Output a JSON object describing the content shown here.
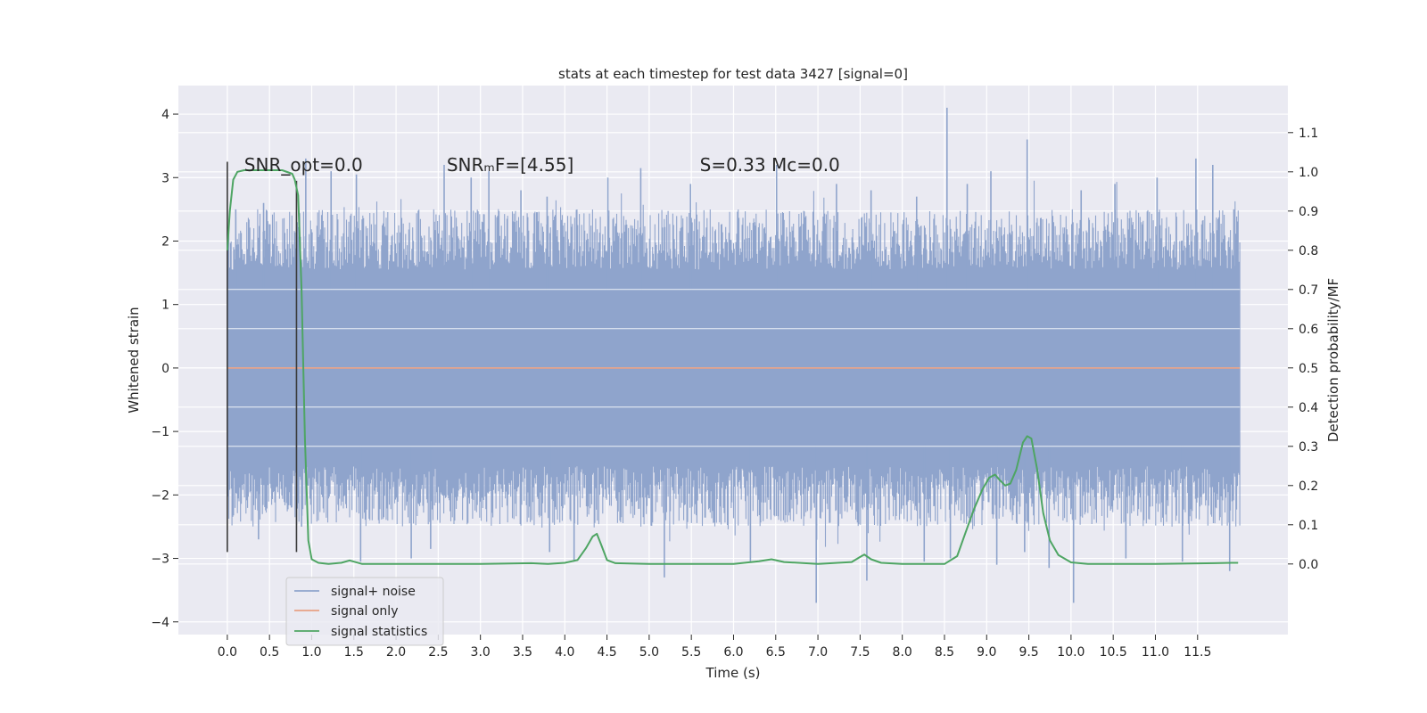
{
  "chart_data": {
    "type": "line",
    "title": "stats at each timestep for test data 3427 [signal=0]",
    "xlabel": "Time (s)",
    "ylabel": "Whitened strain",
    "ylabel_right": "Detection probability/MF",
    "xlim": [
      -0.58,
      12.57
    ],
    "ylim": [
      -4.2,
      4.45
    ],
    "ylim_right": [
      -0.18,
      1.22
    ],
    "x_ticks": [
      0.0,
      0.5,
      1.0,
      1.5,
      2.0,
      2.5,
      3.0,
      3.5,
      4.0,
      4.5,
      5.0,
      5.5,
      6.0,
      6.5,
      7.0,
      7.5,
      8.0,
      8.5,
      9.0,
      9.5,
      10.0,
      10.5,
      11.0,
      11.5
    ],
    "x_tick_labels": [
      "0.0",
      "0.5",
      "1.0",
      "1.5",
      "2.0",
      "2.5",
      "3.0",
      "3.5",
      "4.0",
      "4.5",
      "5.0",
      "5.5",
      "6.0",
      "6.5",
      "7.0",
      "7.5",
      "8.0",
      "8.5",
      "9.0",
      "9.5",
      "10.0",
      "10.5",
      "11.0",
      "11.5"
    ],
    "y_ticks": [
      -4,
      -3,
      -2,
      -1,
      0,
      1,
      2,
      3,
      4
    ],
    "y_tick_labels": [
      "−4",
      "−3",
      "−2",
      "−1",
      "0",
      "1",
      "2",
      "3",
      "4"
    ],
    "y_ticks_right": [
      0.0,
      0.1,
      0.2,
      0.3,
      0.4,
      0.5,
      0.6,
      0.7,
      0.8,
      0.9,
      1.0,
      1.1
    ],
    "y_tick_labels_right": [
      "0.0",
      "0.1",
      "0.2",
      "0.3",
      "0.4",
      "0.5",
      "0.6",
      "0.7",
      "0.8",
      "0.9",
      "1.0",
      "1.1"
    ],
    "grid": true,
    "legend_position": "lower-left",
    "series": [
      {
        "name": "signal+ noise",
        "color": "#8fa4cc",
        "axis": "left",
        "t_range": [
          0.0,
          12.0
        ],
        "band": [
          -1.4,
          1.4
        ],
        "peaks_high": [
          [
            0.1,
            2.5
          ],
          [
            0.43,
            2.6
          ],
          [
            0.93,
            3.3
          ],
          [
            1.23,
            3.1
          ],
          [
            1.53,
            3.05
          ],
          [
            2.57,
            3.2
          ],
          [
            2.89,
            3.0
          ],
          [
            3.1,
            3.1
          ],
          [
            3.48,
            2.8
          ],
          [
            3.79,
            2.7
          ],
          [
            4.51,
            3.0
          ],
          [
            4.9,
            3.15
          ],
          [
            5.49,
            2.9
          ],
          [
            6.51,
            3.2
          ],
          [
            7.22,
            2.9
          ],
          [
            7.63,
            2.8
          ],
          [
            8.17,
            2.7
          ],
          [
            8.53,
            4.1
          ],
          [
            8.77,
            2.9
          ],
          [
            9.05,
            3.1
          ],
          [
            9.48,
            3.6
          ],
          [
            10.12,
            2.8
          ],
          [
            10.52,
            2.9
          ],
          [
            11.02,
            3.0
          ],
          [
            11.48,
            3.3
          ],
          [
            11.68,
            3.2
          ],
          [
            11.93,
            2.5
          ]
        ],
        "peaks_low": [
          [
            0.37,
            -2.7
          ],
          [
            0.88,
            -2.5
          ],
          [
            1.58,
            -3.05
          ],
          [
            2.18,
            -3.0
          ],
          [
            2.41,
            -2.85
          ],
          [
            3.82,
            -2.9
          ],
          [
            4.11,
            -3.05
          ],
          [
            5.18,
            -3.3
          ],
          [
            6.2,
            -3.05
          ],
          [
            6.98,
            -3.7
          ],
          [
            7.58,
            -3.35
          ],
          [
            8.26,
            -3.05
          ],
          [
            8.57,
            -3.0
          ],
          [
            9.12,
            -3.1
          ],
          [
            9.45,
            -2.9
          ],
          [
            9.74,
            -3.15
          ],
          [
            10.03,
            -3.7
          ],
          [
            10.65,
            -3.0
          ],
          [
            11.32,
            -3.05
          ],
          [
            11.88,
            -3.2
          ]
        ]
      },
      {
        "name": "signal only",
        "color": "#e8a085",
        "axis": "left",
        "x": [
          0.0,
          12.0
        ],
        "y": [
          0.0,
          0.0
        ]
      },
      {
        "name": "signal statistics",
        "color": "#4ea563",
        "axis": "right",
        "x": [
          0.0,
          0.03,
          0.07,
          0.12,
          0.2,
          0.3,
          0.5,
          0.65,
          0.77,
          0.8,
          0.84,
          0.88,
          0.92,
          0.96,
          1.0,
          1.08,
          1.2,
          1.35,
          1.45,
          1.6,
          2.0,
          3.0,
          3.6,
          3.8,
          4.0,
          4.15,
          4.25,
          4.33,
          4.38,
          4.43,
          4.5,
          4.6,
          5.0,
          6.0,
          6.3,
          6.45,
          6.6,
          7.0,
          7.4,
          7.5,
          7.55,
          7.63,
          7.75,
          8.0,
          8.5,
          8.65,
          8.75,
          8.85,
          8.95,
          9.03,
          9.1,
          9.15,
          9.22,
          9.28,
          9.35,
          9.43,
          9.48,
          9.53,
          9.6,
          9.67,
          9.75,
          9.85,
          10.0,
          10.2,
          11.0,
          11.7,
          11.9,
          11.98
        ],
        "y": [
          0.8,
          0.9,
          0.98,
          1.0,
          1.004,
          1.004,
          1.004,
          1.004,
          0.995,
          0.98,
          0.94,
          0.7,
          0.32,
          0.06,
          0.012,
          0.003,
          0.0,
          0.003,
          0.009,
          0.0,
          0.0,
          0.0,
          0.002,
          0.0,
          0.003,
          0.01,
          0.04,
          0.07,
          0.077,
          0.05,
          0.01,
          0.002,
          0.0,
          0.0,
          0.007,
          0.012,
          0.005,
          0.0,
          0.005,
          0.018,
          0.024,
          0.012,
          0.003,
          0.0,
          0.0,
          0.02,
          0.08,
          0.14,
          0.19,
          0.22,
          0.228,
          0.215,
          0.2,
          0.205,
          0.24,
          0.31,
          0.326,
          0.32,
          0.24,
          0.13,
          0.06,
          0.023,
          0.004,
          0.0,
          0.0,
          0.002,
          0.003,
          0.003
        ]
      }
    ],
    "vertical_markers": [
      {
        "x": 0.0,
        "y_from": -2.9,
        "y_to": 3.25,
        "color": "#3a3a3a"
      },
      {
        "x": 0.82,
        "y_from": -2.9,
        "y_to": 2.95,
        "color": "#3a3a3a"
      }
    ],
    "annotations": [
      {
        "id": "snr-opt",
        "text": "SNR_opt=0.0",
        "x": 0.2,
        "y": 3.2
      },
      {
        "id": "snr-mf",
        "text": "SNRₘF=[4.55]",
        "x": 2.6,
        "y": 3.2
      },
      {
        "id": "s-mc",
        "text": "S=0.33   Mᴄ=0.0",
        "x": 5.6,
        "y": 3.2
      }
    ]
  }
}
